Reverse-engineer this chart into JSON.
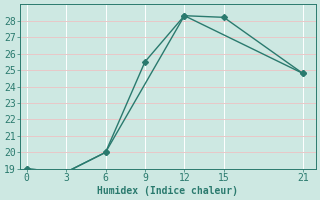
{
  "line1_x": [
    0,
    3,
    6,
    9,
    12,
    15,
    21
  ],
  "line1_y": [
    19,
    18.8,
    20,
    25.5,
    28.3,
    28.2,
    24.8
  ],
  "line2_x": [
    0,
    3,
    6,
    12,
    21
  ],
  "line2_y": [
    19,
    18.8,
    20,
    28.3,
    24.8
  ],
  "color": "#2a7a6e",
  "bg_color": "#cde8e2",
  "grid_color_major": "#e8c8c8",
  "grid_color_minor": "#ffffff",
  "xlabel": "Humidex (Indice chaleur)",
  "xlim": [
    -0.5,
    22
  ],
  "ylim": [
    19,
    29
  ],
  "xticks": [
    0,
    3,
    6,
    9,
    12,
    15,
    21
  ],
  "yticks": [
    19,
    20,
    21,
    22,
    23,
    24,
    25,
    26,
    27,
    28
  ],
  "marker": "D",
  "markersize": 3,
  "linewidth": 1.0,
  "font_size": 7
}
